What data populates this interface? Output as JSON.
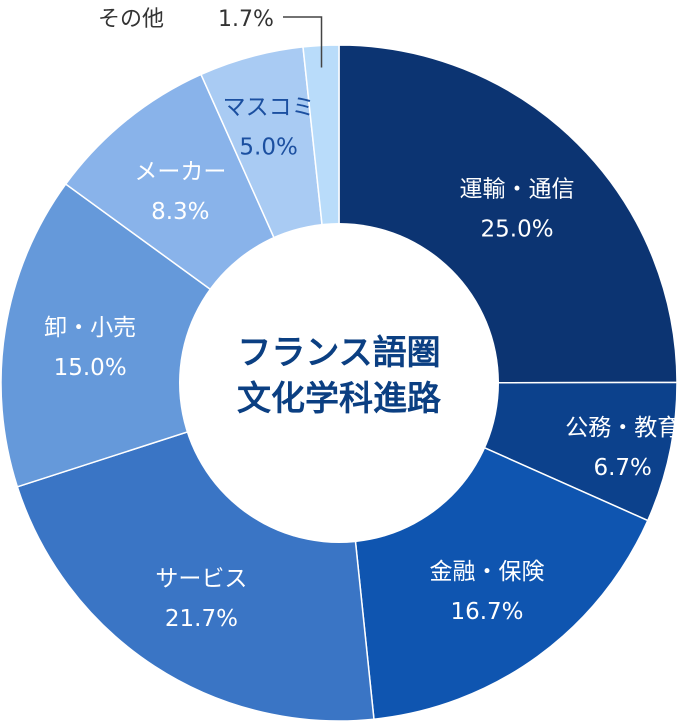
{
  "center_title": {
    "line1": "フランス語圏",
    "line2": "文化学科進路"
  },
  "chart_data": {
    "type": "donut",
    "title": "フランス語圏文化学科進路",
    "slices": [
      {
        "label": "運輸・通信",
        "value": 25.0,
        "value_label": "25.0%",
        "color": "#0c3472"
      },
      {
        "label": "公務・教育",
        "value": 6.7,
        "value_label": "6.7%",
        "color": "#0c418c"
      },
      {
        "label": "金融・保険",
        "value": 16.7,
        "value_label": "16.7%",
        "color": "#0f55b0"
      },
      {
        "label": "サービス",
        "value": 21.7,
        "value_label": "21.7%",
        "color": "#3a75c5"
      },
      {
        "label": "卸・小売",
        "value": 15.0,
        "value_label": "15.0%",
        "color": "#6599da"
      },
      {
        "label": "メーカー",
        "value": 8.3,
        "value_label": "8.3%",
        "color": "#89b3ea"
      },
      {
        "label": "マスコミ",
        "value": 5.0,
        "value_label": "5.0%",
        "color": "#a9cbf3"
      },
      {
        "label": "その他",
        "value": 1.7,
        "value_label": "1.7%",
        "color": "#b9dcfa"
      }
    ]
  }
}
